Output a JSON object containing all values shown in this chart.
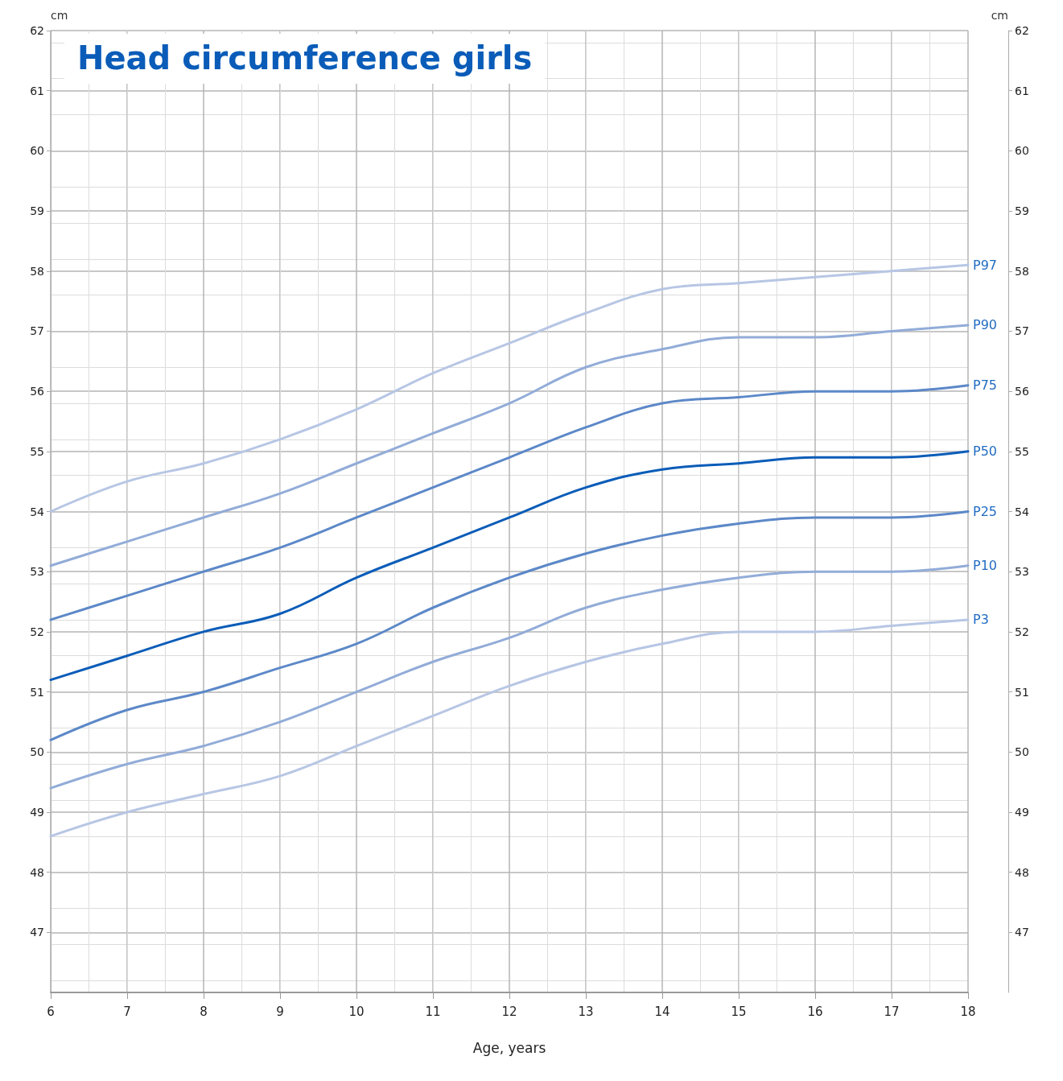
{
  "chart_data": {
    "type": "line",
    "title": "Head circumference girls",
    "xlabel": "Age, years",
    "ylabel": "cm",
    "y2label": "cm",
    "x": [
      6,
      7,
      8,
      9,
      10,
      11,
      12,
      13,
      14,
      15,
      16,
      17,
      18
    ],
    "series": [
      {
        "name": "P97",
        "color": "#b7c6e4",
        "values": [
          54.0,
          54.5,
          54.8,
          55.2,
          55.7,
          56.3,
          56.8,
          57.3,
          57.7,
          57.8,
          57.9,
          58.0,
          58.1
        ]
      },
      {
        "name": "P90",
        "color": "#92acd8",
        "values": [
          53.1,
          53.5,
          53.9,
          54.3,
          54.8,
          55.3,
          55.8,
          56.4,
          56.7,
          56.9,
          56.9,
          57.0,
          57.1
        ]
      },
      {
        "name": "P75",
        "color": "#5c88c8",
        "values": [
          52.2,
          52.6,
          53.0,
          53.4,
          53.9,
          54.4,
          54.9,
          55.4,
          55.8,
          55.9,
          56.0,
          56.0,
          56.1
        ]
      },
      {
        "name": "P50",
        "color": "#0a5cb8",
        "values": [
          51.2,
          51.6,
          52.0,
          52.3,
          52.9,
          53.4,
          53.9,
          54.4,
          54.7,
          54.8,
          54.9,
          54.9,
          55.0
        ]
      },
      {
        "name": "P25",
        "color": "#5c88c8",
        "values": [
          50.2,
          50.7,
          51.0,
          51.4,
          51.8,
          52.4,
          52.9,
          53.3,
          53.6,
          53.8,
          53.9,
          53.9,
          54.0
        ]
      },
      {
        "name": "P10",
        "color": "#92acd8",
        "values": [
          49.4,
          49.8,
          50.1,
          50.5,
          51.0,
          51.5,
          51.9,
          52.4,
          52.7,
          52.9,
          53.0,
          53.0,
          53.1
        ]
      },
      {
        "name": "P3",
        "color": "#b7c6e4",
        "values": [
          48.6,
          49.0,
          49.3,
          49.6,
          50.1,
          50.6,
          51.1,
          51.5,
          51.8,
          52.0,
          52.0,
          52.1,
          52.2
        ]
      }
    ],
    "xlim": [
      6,
      18
    ],
    "xticks": [
      6,
      7,
      8,
      9,
      10,
      11,
      12,
      13,
      14,
      15,
      16,
      17,
      18
    ],
    "ylim": [
      46,
      62
    ],
    "yticks": [
      47,
      48,
      49,
      50,
      51,
      52,
      53,
      54,
      55,
      56,
      57,
      58,
      59,
      60,
      61,
      62
    ],
    "y2lim": [
      46,
      62
    ],
    "y2ticks": [
      47,
      48,
      49,
      50,
      51,
      52,
      53,
      54,
      55,
      56,
      57,
      58,
      59,
      60,
      61,
      62
    ],
    "grid": true,
    "legend": false,
    "marker": "none",
    "line_style": "solid"
  }
}
